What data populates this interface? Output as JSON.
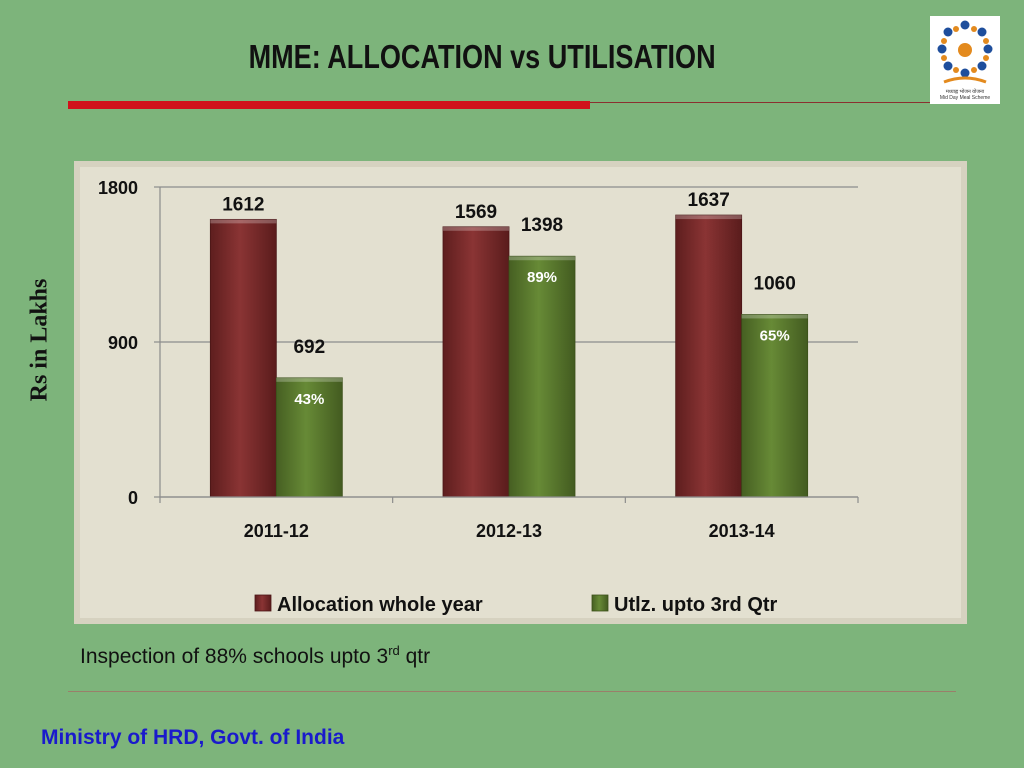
{
  "slide": {
    "title": "MME: ALLOCATION vs UTILISATION",
    "note_prefix": "Inspection of  88% schools upto 3",
    "note_sup": "rd",
    "note_suffix": " qtr",
    "footer": "Ministry of HRD, Govt. of India",
    "logo_line1": "मध्याह्न भोजन योजना",
    "logo_line2": "Mid Day Meal Scheme"
  },
  "chart_data": {
    "type": "bar",
    "ylabel": "Rs in Lakhs",
    "xlabel": "",
    "categories": [
      "2011-12",
      "2012-13",
      "2013-14"
    ],
    "ylim": [
      0,
      1800
    ],
    "yticks": [
      0,
      900,
      1800
    ],
    "ytick_labels": [
      "0",
      "900",
      "1800"
    ],
    "grid": true,
    "legend_position": "bottom",
    "series": [
      {
        "name": "Allocation whole year",
        "values": [
          1612,
          1569,
          1637
        ],
        "color": "#7a2b2b",
        "data_labels": [
          "1612",
          "1569",
          "1637"
        ]
      },
      {
        "name": "Utlz. upto 3rd Qtr",
        "values": [
          692,
          1398,
          1060
        ],
        "color": "#5a7a2e",
        "data_labels": [
          "692",
          "1398",
          "1060"
        ],
        "percent_labels": [
          "43%",
          "89%",
          "65%"
        ]
      }
    ]
  }
}
